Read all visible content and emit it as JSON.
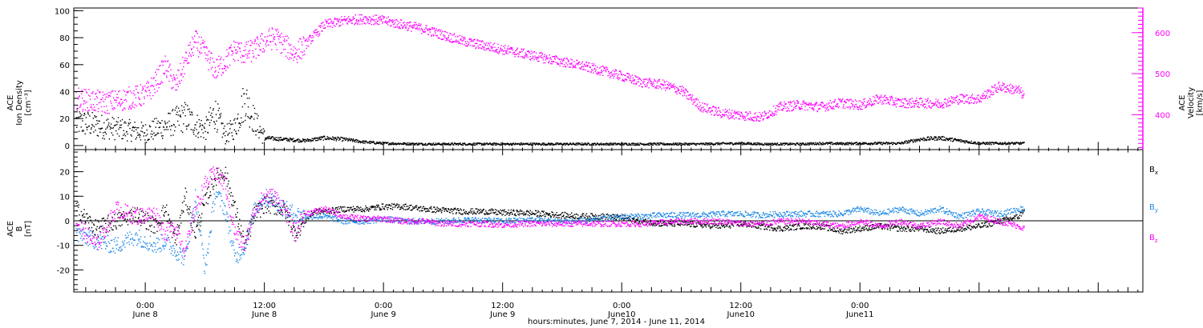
{
  "chart_data": [
    {
      "type": "scatter",
      "panel": "top",
      "ylabel_left": [
        "ACE",
        "Ion Density",
        "[cm⁻³]"
      ],
      "ylabel_right": [
        "ACE",
        "Velocity",
        "[km/s]"
      ],
      "ylim_left": [
        -3,
        102
      ],
      "ylim_right": [
        315,
        660
      ],
      "yticks_left": [
        "0",
        "20",
        "40",
        "60",
        "80",
        "100"
      ],
      "yticks_right": [
        "400",
        "500",
        "600"
      ],
      "series": [
        {
          "axis": "left",
          "color": "#000000",
          "x": [
            -7,
            -4,
            -2,
            0,
            2,
            4,
            5,
            6,
            7,
            8,
            9,
            10,
            11,
            12,
            14,
            16,
            18,
            20,
            22,
            24,
            28,
            32,
            36,
            40,
            44,
            48,
            50,
            52,
            54,
            56,
            58,
            60,
            62,
            64,
            66,
            68,
            70,
            72,
            74,
            76,
            78,
            80,
            82,
            84,
            86,
            88,
            88.5
          ],
          "y": [
            18,
            14,
            12,
            10,
            15,
            22,
            16,
            12,
            25,
            8,
            14,
            35,
            18,
            6,
            5,
            4,
            6,
            5,
            3,
            2,
            1.5,
            1.5,
            1.5,
            1.5,
            1.5,
            1.5,
            1.5,
            1.5,
            1.5,
            1.5,
            1.8,
            2,
            1.5,
            1.5,
            1.5,
            2,
            1.8,
            2,
            2,
            2,
            5,
            6,
            4,
            2,
            2,
            2,
            2
          ]
        },
        {
          "axis": "right",
          "color": "#ff00ff",
          "x": [
            -7,
            -4,
            -2,
            0,
            1,
            2,
            3,
            4,
            5,
            6,
            7,
            8,
            9,
            10,
            11,
            12,
            13,
            14,
            15,
            16,
            18,
            20,
            22,
            24,
            26,
            28,
            30,
            32,
            34,
            36,
            38,
            40,
            42,
            44,
            46,
            48,
            50,
            52,
            54,
            56,
            58,
            60,
            62,
            64,
            66,
            68,
            70,
            72,
            74,
            76,
            78,
            80,
            82,
            84,
            86,
            88,
            88.5
          ],
          "y": [
            440,
            430,
            440,
            450,
            480,
            520,
            470,
            530,
            580,
            550,
            510,
            530,
            560,
            550,
            560,
            580,
            590,
            570,
            550,
            570,
            620,
            630,
            635,
            630,
            620,
            610,
            595,
            580,
            570,
            560,
            550,
            540,
            530,
            520,
            508,
            495,
            480,
            475,
            460,
            420,
            405,
            400,
            395,
            420,
            425,
            420,
            430,
            425,
            440,
            430,
            430,
            428,
            440,
            440,
            470,
            460,
            445
          ]
        }
      ]
    },
    {
      "type": "scatter",
      "panel": "bottom",
      "ylabel": [
        "ACE",
        "B",
        "[nT]"
      ],
      "ylim": [
        -29,
        29
      ],
      "yticks": [
        "-20",
        "-10",
        "0",
        "10",
        "20"
      ],
      "zero_line": true,
      "xlabel": "hours:minutes, June  7, 2014 - June 11, 2014",
      "xlim": [
        -7.2,
        100.5
      ],
      "xticks": [
        {
          "x": 0,
          "time": "0:00",
          "date": "June 8"
        },
        {
          "x": 12,
          "time": "12:00",
          "date": "June 8"
        },
        {
          "x": 24,
          "time": "0:00",
          "date": "June 9"
        },
        {
          "x": 36,
          "time": "12:00",
          "date": "June 9"
        },
        {
          "x": 48,
          "time": "0:00",
          "date": "June10"
        },
        {
          "x": 60,
          "time": "12:00",
          "date": "June10"
        },
        {
          "x": 72,
          "time": "0:00",
          "date": "June11"
        }
      ],
      "legend_labels": [
        {
          "name": "B",
          "sub": "x",
          "color": "#000000"
        },
        {
          "name": "B",
          "sub": "y",
          "color": "#1e88e5"
        },
        {
          "name": "B",
          "sub": "z",
          "color": "#ff00ff"
        }
      ],
      "series": [
        {
          "name": "Bx",
          "color": "#000000",
          "x": [
            -7,
            -5,
            -3,
            -1,
            1,
            2,
            3,
            4,
            5,
            6,
            7,
            8,
            9,
            10,
            11,
            12,
            13,
            14,
            15,
            16,
            17,
            18,
            20,
            22,
            24,
            26,
            28,
            30,
            32,
            34,
            36,
            38,
            40,
            42,
            44,
            46,
            48,
            50,
            52,
            54,
            56,
            58,
            60,
            62,
            64,
            66,
            68,
            70,
            72,
            74,
            76,
            78,
            80,
            82,
            84,
            86,
            88,
            88.5
          ],
          "y": [
            5,
            -3,
            0,
            3,
            -2,
            5,
            -8,
            10,
            -5,
            8,
            18,
            20,
            5,
            -10,
            3,
            7,
            6,
            5,
            -5,
            0,
            4,
            4,
            5,
            5,
            6,
            6,
            5,
            4.5,
            4,
            4,
            3.5,
            3.5,
            3,
            2.5,
            2,
            2,
            1.5,
            0,
            -1,
            -1,
            -1.5,
            -2,
            -1,
            -2,
            -3,
            -2,
            -2,
            -4,
            -3,
            -2,
            -3,
            -3,
            -4,
            -3,
            -2,
            0,
            2,
            5
          ]
        },
        {
          "name": "By",
          "color": "#1e88e5",
          "x": [
            -7,
            -5,
            -3,
            -1,
            1,
            2,
            3,
            4,
            5,
            6,
            7,
            8,
            9,
            10,
            11,
            12,
            13,
            14,
            15,
            16,
            17,
            18,
            20,
            22,
            24,
            26,
            28,
            30,
            32,
            34,
            36,
            38,
            40,
            42,
            44,
            46,
            48,
            50,
            52,
            54,
            56,
            58,
            60,
            62,
            64,
            66,
            68,
            70,
            72,
            74,
            76,
            78,
            80,
            82,
            84,
            86,
            88,
            88.5
          ],
          "y": [
            -5,
            -8,
            -10,
            -6,
            -10,
            -8,
            -12,
            -15,
            10,
            -20,
            12,
            5,
            -15,
            -10,
            5,
            10,
            8,
            5,
            3,
            2,
            2,
            2,
            0,
            0,
            1,
            0,
            0,
            0,
            0.5,
            0.5,
            0,
            0.5,
            0.5,
            0,
            0,
            1,
            2,
            2,
            2.5,
            2.5,
            2.5,
            3,
            3,
            2.5,
            3,
            3,
            3,
            3,
            5,
            3,
            5,
            3,
            5,
            2,
            4,
            3,
            5,
            5
          ]
        },
        {
          "name": "Bz",
          "color": "#ff00ff",
          "x": [
            -7,
            -5,
            -3,
            -1,
            1,
            2,
            3,
            4,
            5,
            6,
            7,
            8,
            9,
            10,
            11,
            12,
            13,
            14,
            15,
            16,
            17,
            18,
            20,
            22,
            24,
            26,
            28,
            30,
            32,
            34,
            36,
            38,
            40,
            42,
            44,
            46,
            48,
            50,
            52,
            54,
            56,
            58,
            60,
            62,
            64,
            66,
            68,
            70,
            72,
            74,
            76,
            78,
            80,
            82,
            84,
            86,
            88,
            88.5
          ],
          "y": [
            0,
            -10,
            5,
            2,
            3,
            -5,
            -2,
            -12,
            5,
            15,
            20,
            15,
            -5,
            -10,
            5,
            10,
            10,
            5,
            -5,
            3,
            4,
            5,
            2,
            1,
            1,
            0,
            0,
            -1,
            -1,
            -1,
            -1.5,
            -1,
            -1,
            -1,
            -1,
            -1,
            -1,
            -1,
            -0.5,
            0,
            0,
            0,
            -1,
            -1,
            0,
            0,
            -1,
            -2,
            0,
            -2,
            0,
            -2,
            0,
            -2,
            2,
            0,
            -2,
            -3
          ]
        }
      ]
    }
  ]
}
